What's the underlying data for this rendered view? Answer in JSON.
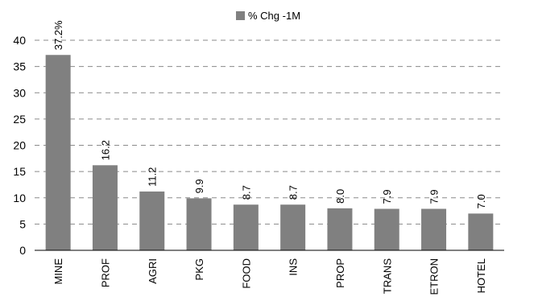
{
  "chart_data": {
    "type": "bar",
    "categories": [
      "MINE",
      "PROF",
      "AGRI",
      "PKG",
      "FOOD",
      "INS",
      "PROP",
      "TRANS",
      "ETRON",
      "HOTEL"
    ],
    "series": [
      {
        "name": "% Chg -1M",
        "values": [
          37.2,
          16.2,
          11.2,
          9.9,
          8.7,
          8.7,
          8.0,
          7.9,
          7.9,
          7.0
        ],
        "labels": [
          "37.2%",
          "16.2",
          "11.2",
          "9.9",
          "8.7",
          "8.7",
          "8.0",
          "7.9",
          "7.9",
          "7.0"
        ]
      }
    ],
    "yticks": [
      "0",
      "5",
      "10",
      "15",
      "20",
      "25",
      "30",
      "35",
      "40"
    ],
    "ylim": [
      0,
      40
    ],
    "grid": true,
    "legend_position": "top-center",
    "bar_color": "#808080"
  }
}
